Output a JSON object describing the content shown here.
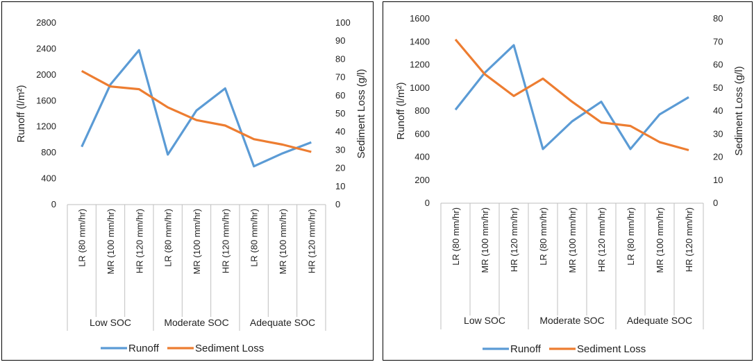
{
  "colors": {
    "runoff": "#5B9BD5",
    "sediment": "#ED7D31",
    "axis": "#bfbfbf"
  },
  "legend": {
    "runoff": "Runoff",
    "sediment": "Sediment Loss"
  },
  "chart_data": [
    {
      "type": "line",
      "x": [
        "LR (80 mm/hr)",
        "MR (100 mm/hr)",
        "HR (120 mm/hr)",
        "LR (80 mm/hr)",
        "MR (100 mm/hr)",
        "HR (120 mm/hr)",
        "LR (80 mm/hr)",
        "MR (100 mm/hr)",
        "HR (120 mm/hr)"
      ],
      "groups": [
        {
          "label": "Low SOC",
          "span": 3
        },
        {
          "label": "Moderate SOC",
          "span": 3
        },
        {
          "label": "Adequate SOC",
          "span": 3
        }
      ],
      "series": [
        {
          "name": "Runoff",
          "axis": "left",
          "values": [
            890,
            1850,
            2380,
            770,
            1450,
            1790,
            590,
            790,
            960
          ]
        },
        {
          "name": "Sediment Loss",
          "axis": "right",
          "values": [
            73.5,
            65,
            63.5,
            53.5,
            46.5,
            43.5,
            36,
            33,
            29
          ]
        }
      ],
      "ylabel": "Runoff (l/m²)",
      "ylim": [
        0,
        2800
      ],
      "yticks": [
        "0",
        "400",
        "800",
        "1200",
        "1600",
        "2000",
        "2400",
        "2800"
      ],
      "y2label": "Sediment Loss (g/l)",
      "y2lim": [
        0,
        100
      ],
      "y2ticks": [
        "0",
        "10",
        "20",
        "30",
        "40",
        "50",
        "60",
        "70",
        "80",
        "90",
        "100"
      ],
      "grid": false,
      "legend_position": "bottom"
    },
    {
      "type": "line",
      "x": [
        "LR (80 mm/hr)",
        "MR (100 mm/hr)",
        "HR (120 mm/hr)",
        "LR (80 mm/hr)",
        "MR (100 mm/hr)",
        "HR (120 mm/hr)",
        "LR (80 mm/hr)",
        "MR (100 mm/hr)",
        "HR (120 mm/hr)"
      ],
      "groups": [
        {
          "label": "Low SOC",
          "span": 3
        },
        {
          "label": "Moderate SOC",
          "span": 3
        },
        {
          "label": "Adequate SOC",
          "span": 3
        }
      ],
      "series": [
        {
          "name": "Runoff",
          "axis": "left",
          "values": [
            810,
            1130,
            1370,
            470,
            710,
            880,
            470,
            770,
            920
          ]
        },
        {
          "name": "Sediment Loss",
          "axis": "right",
          "values": [
            71,
            56,
            46.5,
            54,
            44,
            35,
            33.5,
            26.5,
            23
          ]
        }
      ],
      "ylabel": "Runoff (l/m²)",
      "ylim": [
        0,
        1600
      ],
      "yticks": [
        "0",
        "200",
        "400",
        "600",
        "800",
        "1000",
        "1200",
        "1400",
        "1600"
      ],
      "y2label": "Sediment Loss (g/l)",
      "y2lim": [
        0,
        80
      ],
      "y2ticks": [
        "0",
        "10",
        "20",
        "30",
        "40",
        "50",
        "60",
        "70",
        "80"
      ],
      "grid": false,
      "legend_position": "bottom"
    }
  ]
}
